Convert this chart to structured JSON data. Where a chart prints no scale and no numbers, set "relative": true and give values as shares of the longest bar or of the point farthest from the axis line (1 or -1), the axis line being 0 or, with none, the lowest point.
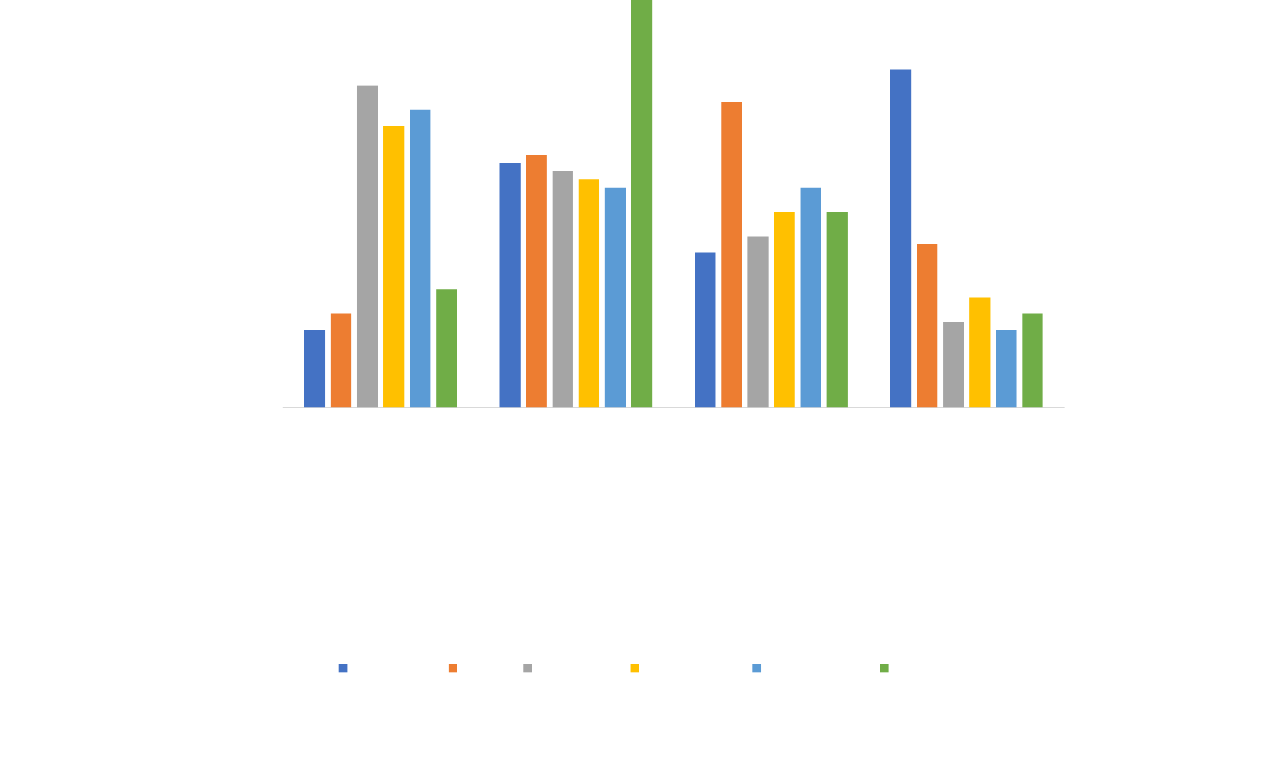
{
  "chart_data": {
    "type": "bar",
    "relative": true,
    "categories": [
      null,
      null,
      null,
      null
    ],
    "series": [
      {
        "color": "#4472c4",
        "values": [
          0.19,
          0.6,
          0.38,
          0.83
        ]
      },
      {
        "color": "#ed7d31",
        "values": [
          0.23,
          0.62,
          0.75,
          0.4
        ]
      },
      {
        "color": "#a5a5a5",
        "values": [
          0.79,
          0.58,
          0.42,
          0.21
        ]
      },
      {
        "color": "#ffc000",
        "values": [
          0.69,
          0.56,
          0.48,
          0.27
        ]
      },
      {
        "color": "#5b9bd5",
        "values": [
          0.73,
          0.54,
          0.54,
          0.19
        ]
      },
      {
        "color": "#70ad47",
        "values": [
          0.29,
          1,
          0.48,
          0.23
        ]
      }
    ]
  }
}
